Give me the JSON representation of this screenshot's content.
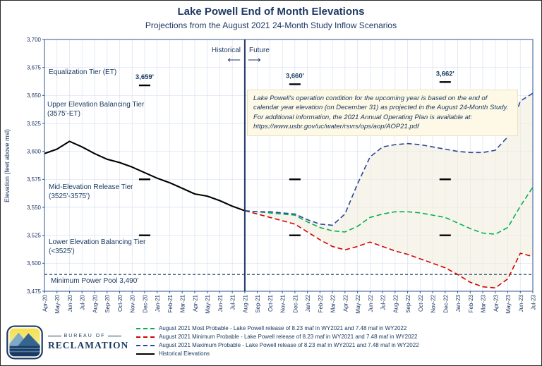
{
  "header": {
    "title": "Lake Powell End of Month Elevations",
    "subtitle": "Projections from the August 2021 24-Month Study Inflow Scenarios"
  },
  "colors": {
    "navy": "#1F3864",
    "historical": "#000000",
    "most_probable_green": "#00B050",
    "minimum_probable_red": "#D40000",
    "maximum_probable_blue": "#2E4699",
    "annotation_background": "#FDF9E6",
    "grid": "#D9E1F2",
    "envelope_fill": "#F1ECDB"
  },
  "chart_data": {
    "type": "line",
    "title": "Lake Powell End of Month Elevations",
    "ylabel": "Elevation (feet above msl)",
    "ylim": [
      3475,
      3700
    ],
    "ytick_step": 25,
    "grid": true,
    "legend_position": "bottom",
    "x": [
      "Apr-20",
      "May-20",
      "Jun-20",
      "Jul-20",
      "Aug-20",
      "Sep-20",
      "Oct-20",
      "Nov-20",
      "Dec-20",
      "Jan-21",
      "Feb-21",
      "Mar-21",
      "Apr-21",
      "May-21",
      "Jun-21",
      "Jul-21",
      "Aug-21",
      "Sep-21",
      "Oct-21",
      "Nov-21",
      "Dec-21",
      "Jan-22",
      "Feb-22",
      "Mar-22",
      "Apr-22",
      "May-22",
      "Jun-22",
      "Jul-22",
      "Aug-22",
      "Sep-22",
      "Oct-22",
      "Nov-22",
      "Dec-22",
      "Jan-23",
      "Feb-23",
      "Mar-23",
      "Apr-23",
      "May-23",
      "Jun-23",
      "Jul-23"
    ],
    "divider": {
      "x": "Aug-21",
      "left_label": "Historical",
      "right_label": "Future"
    },
    "series": [
      {
        "name": "Historical Elevations",
        "role": "historical",
        "color": "#000000",
        "style": "solid",
        "values": [
          3598,
          3602,
          3609,
          3604,
          3598,
          3593,
          3590,
          3586,
          3581,
          3576,
          3572,
          3567,
          3562,
          3560,
          3556,
          3551,
          3547,
          null,
          null,
          null,
          null,
          null,
          null,
          null,
          null,
          null,
          null,
          null,
          null,
          null,
          null,
          null,
          null,
          null,
          null,
          null,
          null,
          null,
          null,
          null
        ]
      },
      {
        "name": "August 2021 Most Probable - Lake Powell release of 8.23 maf in WY2021 and 7.48 maf in WY2022",
        "role": "most",
        "color": "#00B050",
        "style": "dashed",
        "values": [
          null,
          null,
          null,
          null,
          null,
          null,
          null,
          null,
          null,
          null,
          null,
          null,
          null,
          null,
          null,
          null,
          3547,
          3546,
          3545,
          3544,
          3543,
          3537,
          3532,
          3529,
          3528,
          3533,
          3541,
          3544,
          3546,
          3546,
          3545,
          3543,
          3541,
          3536,
          3531,
          3527,
          3526,
          3532,
          3551,
          3568
        ]
      },
      {
        "name": "August 2021 Minimum Probable - Lake Powell release of 8.23 maf in WY2021 and 7.48 maf in WY2022",
        "role": "min",
        "color": "#D40000",
        "style": "dashed",
        "values": [
          null,
          null,
          null,
          null,
          null,
          null,
          null,
          null,
          null,
          null,
          null,
          null,
          null,
          null,
          null,
          null,
          3547,
          3544,
          3541,
          3538,
          3535,
          3528,
          3521,
          3515,
          3512,
          3515,
          3519,
          3515,
          3511,
          3508,
          3504,
          3500,
          3496,
          3490,
          3483,
          3479,
          3478,
          3486,
          3509,
          3506
        ]
      },
      {
        "name": "August 2021 Maximum Probable - Lake Powell release of 8.23 maf in WY2021 and 7.48 maf in WY2022",
        "role": "max",
        "color": "#2E4699",
        "style": "dashed",
        "values": [
          null,
          null,
          null,
          null,
          null,
          null,
          null,
          null,
          null,
          null,
          null,
          null,
          null,
          null,
          null,
          null,
          3547,
          3546,
          3546,
          3545,
          3544,
          3539,
          3535,
          3534,
          3544,
          3571,
          3595,
          3604,
          3606,
          3607,
          3606,
          3604,
          3602,
          3600,
          3599,
          3599,
          3601,
          3613,
          3645,
          3652
        ]
      }
    ],
    "et_markers": [
      {
        "month": "Dec-20",
        "label": "3,659'",
        "et": 3659,
        "dashes": [
          3659,
          3575,
          3525
        ]
      },
      {
        "month": "Dec-21",
        "label": "3,660'",
        "et": 3660,
        "dashes": [
          3660,
          3575,
          3525
        ]
      },
      {
        "month": "Dec-22",
        "label": "3,662'",
        "et": 3662,
        "dashes": [
          3662,
          3575,
          3525
        ]
      }
    ],
    "reference_line": {
      "value": 3490,
      "label": "Minimum Power Pool  3,490'"
    },
    "tier_labels": {
      "equalization": "Equalization Tier (ET)",
      "upper_1": "Upper Elevation Balancing Tier",
      "upper_2": "(3575'-ET)",
      "mid_1": "Mid-Elevation Release Tier",
      "mid_2": "(3525'-3575')",
      "lower_1": "Lower Elevation Balancing Tier",
      "lower_2": "(<3525')",
      "min_power_pool": "Minimum Power Pool  3,490'"
    }
  },
  "annotation": {
    "text": "Lake Powell's operation condition for the upcoming year is based on the end of calendar year elevation (on December 31) as projected in the August 24-Month Study. For additional information, the 2021 Annual Operating Plan is available at:",
    "url": "https://www.usbr.gov/uc/water/rsvrs/ops/aop/AOP21.pdf"
  },
  "legend": {
    "items": [
      {
        "label": "August 2021 Most Probable - Lake Powell release of 8.23 maf in WY2021 and 7.48 maf in WY2022",
        "color": "#00B050",
        "style": "dashed"
      },
      {
        "label": "August 2021 Minimum Probable - Lake Powell release of 8.23 maf in WY2021 and 7.48 maf in WY2022",
        "color": "#D40000",
        "style": "dashed"
      },
      {
        "label": "August 2021 Maximum Probable - Lake Powell release of 8.23 maf in WY2021 and 7.48 maf in WY2022",
        "color": "#2E4699",
        "style": "dashed"
      },
      {
        "label": "Historical Elevations",
        "color": "#000000",
        "style": "solid"
      }
    ]
  },
  "logo": {
    "line1": "BUREAU OF",
    "line2": "RECLAMATION"
  }
}
